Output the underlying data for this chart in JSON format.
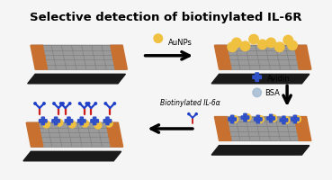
{
  "title": "Selective detection of biotinylated IL-6R",
  "title_fontsize": 9.5,
  "bg_color": "#f5f5f5",
  "graphene_color": "#9a9a9a",
  "graphene_grid_color": "#7a7a7a",
  "electrode_color": "#c87030",
  "substrate_color": "#1a1a1a",
  "aunp_color": "#f0c040",
  "avidin_color": "#3050c8",
  "bsa_color": "#a0b8d0",
  "antibody_stem_color": "#cc2020",
  "antibody_top_color": "#2040c8",
  "label_aunps": "AuNPs",
  "label_avidin": "Avidin",
  "label_bsa": "BSA",
  "label_biotinylated": "Biotinylated IL-6α"
}
